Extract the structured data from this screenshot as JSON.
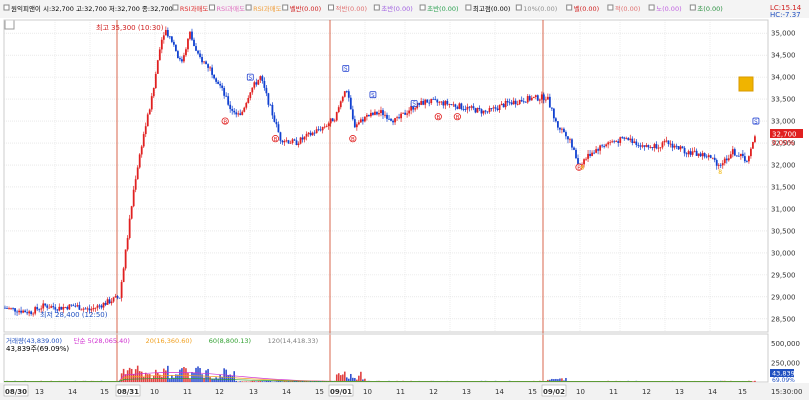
{
  "legend_top": [
    {
      "text": "원익피앤이 시:32,700 고:32,700 저:32,700 종:32,700",
      "color": "#000000"
    },
    {
      "text": "RSI과매도",
      "color": "#e03030"
    },
    {
      "text": "RSI과매도",
      "color": "#e070c0"
    },
    {
      "text": "RSI과매도",
      "color": "#f0a040"
    },
    {
      "text": "벨반(0.00)",
      "color": "#d02020"
    },
    {
      "text": "적반(0.00)",
      "color": "#e07070"
    },
    {
      "text": "초반(0.00)",
      "color": "#a060e0"
    },
    {
      "text": "초반(0.00)",
      "color": "#2aa050"
    },
    {
      "text": "최고점(0.00)",
      "color": "#000000"
    },
    {
      "text": "10%(0.00)",
      "color": "#909090"
    },
    {
      "text": "벨(0.00)",
      "color": "#d02020"
    },
    {
      "text": "적(0.00)",
      "color": "#e07070"
    },
    {
      "text": "노(0.00)",
      "color": "#c060e0"
    },
    {
      "text": "초(0.00)",
      "color": "#2a9040"
    }
  ],
  "corner": {
    "lc": "LC:15.14",
    "hc": "HC:-7.37"
  },
  "price_axis": {
    "ticks": [
      "35,000",
      "34,500",
      "34,000",
      "33,500",
      "33,000",
      "32,500",
      "32,000",
      "31,500",
      "31,000",
      "30,500",
      "30,000",
      "29,500",
      "29,000",
      "28,500"
    ],
    "tag_price": "32,700",
    "tag_pct": "0.00%"
  },
  "annotations": {
    "high": "최고 35,300 (10:30)",
    "low": "최저 28,400 (12:50)"
  },
  "volume_legend": {
    "items": [
      {
        "text": "거래량(43,839.00)",
        "color": "#2050c0"
      },
      {
        "text": "단순 5(28,065.40)",
        "color": "#d030d0"
      },
      {
        "text": "20(16,360.60)",
        "color": "#f0a020"
      },
      {
        "text": "60(8,800.13)",
        "color": "#30a030"
      },
      {
        "text": "120(14,418.33)",
        "color": "#808080"
      }
    ],
    "sub": "43,839주(69.09%)"
  },
  "volume_axis": {
    "ticks": [
      "500,000",
      "250,000"
    ],
    "tag": "43,839",
    "pct": "69.09%"
  },
  "time_axis": [
    "08/30",
    "13",
    "14",
    "15",
    "08/31",
    "10",
    "11",
    "12",
    "13",
    "14",
    "15",
    "09/01",
    "10",
    "11",
    "12",
    "13",
    "14",
    "15",
    "09/02",
    "10",
    "11",
    "12",
    "13",
    "14",
    "15",
    "15:30:00"
  ],
  "chart_data": {
    "type": "candlestick",
    "title": "원익피앤이",
    "ohlc": {
      "open": 32700,
      "high": 32700,
      "low": 32700,
      "close": 32700
    },
    "ylim": [
      28200,
      35300
    ],
    "y_ticks": [
      35000,
      34500,
      34000,
      33500,
      33000,
      32500,
      32000,
      31500,
      31000,
      30500,
      30000,
      29500,
      29000,
      28500
    ],
    "day_separators": [
      "08/31",
      "09/01",
      "09/02"
    ],
    "day_high": {
      "value": 35300,
      "time": "10:30"
    },
    "day_low": {
      "value": 28400,
      "time": "12:50"
    },
    "price_path": [
      {
        "t": 0,
        "p": 28750
      },
      {
        "t": 14,
        "p": 28700
      },
      {
        "t": 26,
        "p": 28650
      },
      {
        "t": 40,
        "p": 28800
      },
      {
        "t": 55,
        "p": 28750
      },
      {
        "t": 70,
        "p": 28800
      },
      {
        "t": 85,
        "p": 28700
      },
      {
        "t": 100,
        "p": 28850
      },
      {
        "t": 115,
        "p": 29000
      },
      {
        "t": 122,
        "p": 30200
      },
      {
        "t": 130,
        "p": 31600
      },
      {
        "t": 138,
        "p": 32600
      },
      {
        "t": 148,
        "p": 33600
      },
      {
        "t": 155,
        "p": 34700
      },
      {
        "t": 160,
        "p": 35100
      },
      {
        "t": 168,
        "p": 34800
      },
      {
        "t": 176,
        "p": 34300
      },
      {
        "t": 185,
        "p": 35000
      },
      {
        "t": 192,
        "p": 34500
      },
      {
        "t": 205,
        "p": 34200
      },
      {
        "t": 215,
        "p": 33800
      },
      {
        "t": 225,
        "p": 33300
      },
      {
        "t": 235,
        "p": 33100
      },
      {
        "t": 245,
        "p": 33700
      },
      {
        "t": 255,
        "p": 34000
      },
      {
        "t": 265,
        "p": 33300
      },
      {
        "t": 275,
        "p": 32600
      },
      {
        "t": 290,
        "p": 32500
      },
      {
        "t": 305,
        "p": 32700
      },
      {
        "t": 320,
        "p": 32900
      },
      {
        "t": 330,
        "p": 33100
      },
      {
        "t": 340,
        "p": 33800
      },
      {
        "t": 348,
        "p": 32900
      },
      {
        "t": 360,
        "p": 33100
      },
      {
        "t": 375,
        "p": 33200
      },
      {
        "t": 390,
        "p": 33000
      },
      {
        "t": 405,
        "p": 33300
      },
      {
        "t": 420,
        "p": 33450
      },
      {
        "t": 440,
        "p": 33400
      },
      {
        "t": 460,
        "p": 33300
      },
      {
        "t": 480,
        "p": 33200
      },
      {
        "t": 500,
        "p": 33400
      },
      {
        "t": 520,
        "p": 33500
      },
      {
        "t": 540,
        "p": 33550
      },
      {
        "t": 550,
        "p": 32900
      },
      {
        "t": 560,
        "p": 32700
      },
      {
        "t": 572,
        "p": 32000
      },
      {
        "t": 585,
        "p": 32300
      },
      {
        "t": 600,
        "p": 32500
      },
      {
        "t": 620,
        "p": 32600
      },
      {
        "t": 640,
        "p": 32400
      },
      {
        "t": 660,
        "p": 32500
      },
      {
        "t": 680,
        "p": 32300
      },
      {
        "t": 700,
        "p": 32200
      },
      {
        "t": 712,
        "p": 32000
      },
      {
        "t": 725,
        "p": 32300
      },
      {
        "t": 740,
        "p": 32100
      },
      {
        "t": 748,
        "p": 32700
      }
    ],
    "signal_markers": [
      {
        "t": 220,
        "p": 33000,
        "label": "B",
        "kind": "buy"
      },
      {
        "t": 245,
        "p": 34000,
        "label": "S",
        "kind": "sell"
      },
      {
        "t": 270,
        "p": 32600,
        "label": "B",
        "kind": "buy"
      },
      {
        "t": 340,
        "p": 34200,
        "label": "S",
        "kind": "sell"
      },
      {
        "t": 347,
        "p": 32600,
        "label": "B",
        "kind": "buy"
      },
      {
        "t": 367,
        "p": 33600,
        "label": "S",
        "kind": "sell"
      },
      {
        "t": 408,
        "p": 33400,
        "label": "S",
        "kind": "sell"
      },
      {
        "t": 432,
        "p": 33100,
        "label": "B",
        "kind": "buy"
      },
      {
        "t": 451,
        "p": 33100,
        "label": "B",
        "kind": "buy"
      },
      {
        "t": 572,
        "p": 31950,
        "label": "B",
        "kind": "buy"
      },
      {
        "t": 748,
        "p": 33000,
        "label": "S",
        "kind": "sell"
      }
    ],
    "volume": {
      "ylim": [
        0,
        600000
      ],
      "ticks": [
        500000,
        250000
      ],
      "last": 43839,
      "ma": {
        "ma5": 28065.4,
        "ma20": 16360.6,
        "ma60": 8800.13,
        "ma120": 14418.33
      }
    }
  },
  "colors": {
    "up": "#e02020",
    "down": "#1040d0",
    "separator": "#d04020",
    "grid": "#dcdcdc",
    "tag": "#e02020",
    "signal": "#f0b400"
  }
}
